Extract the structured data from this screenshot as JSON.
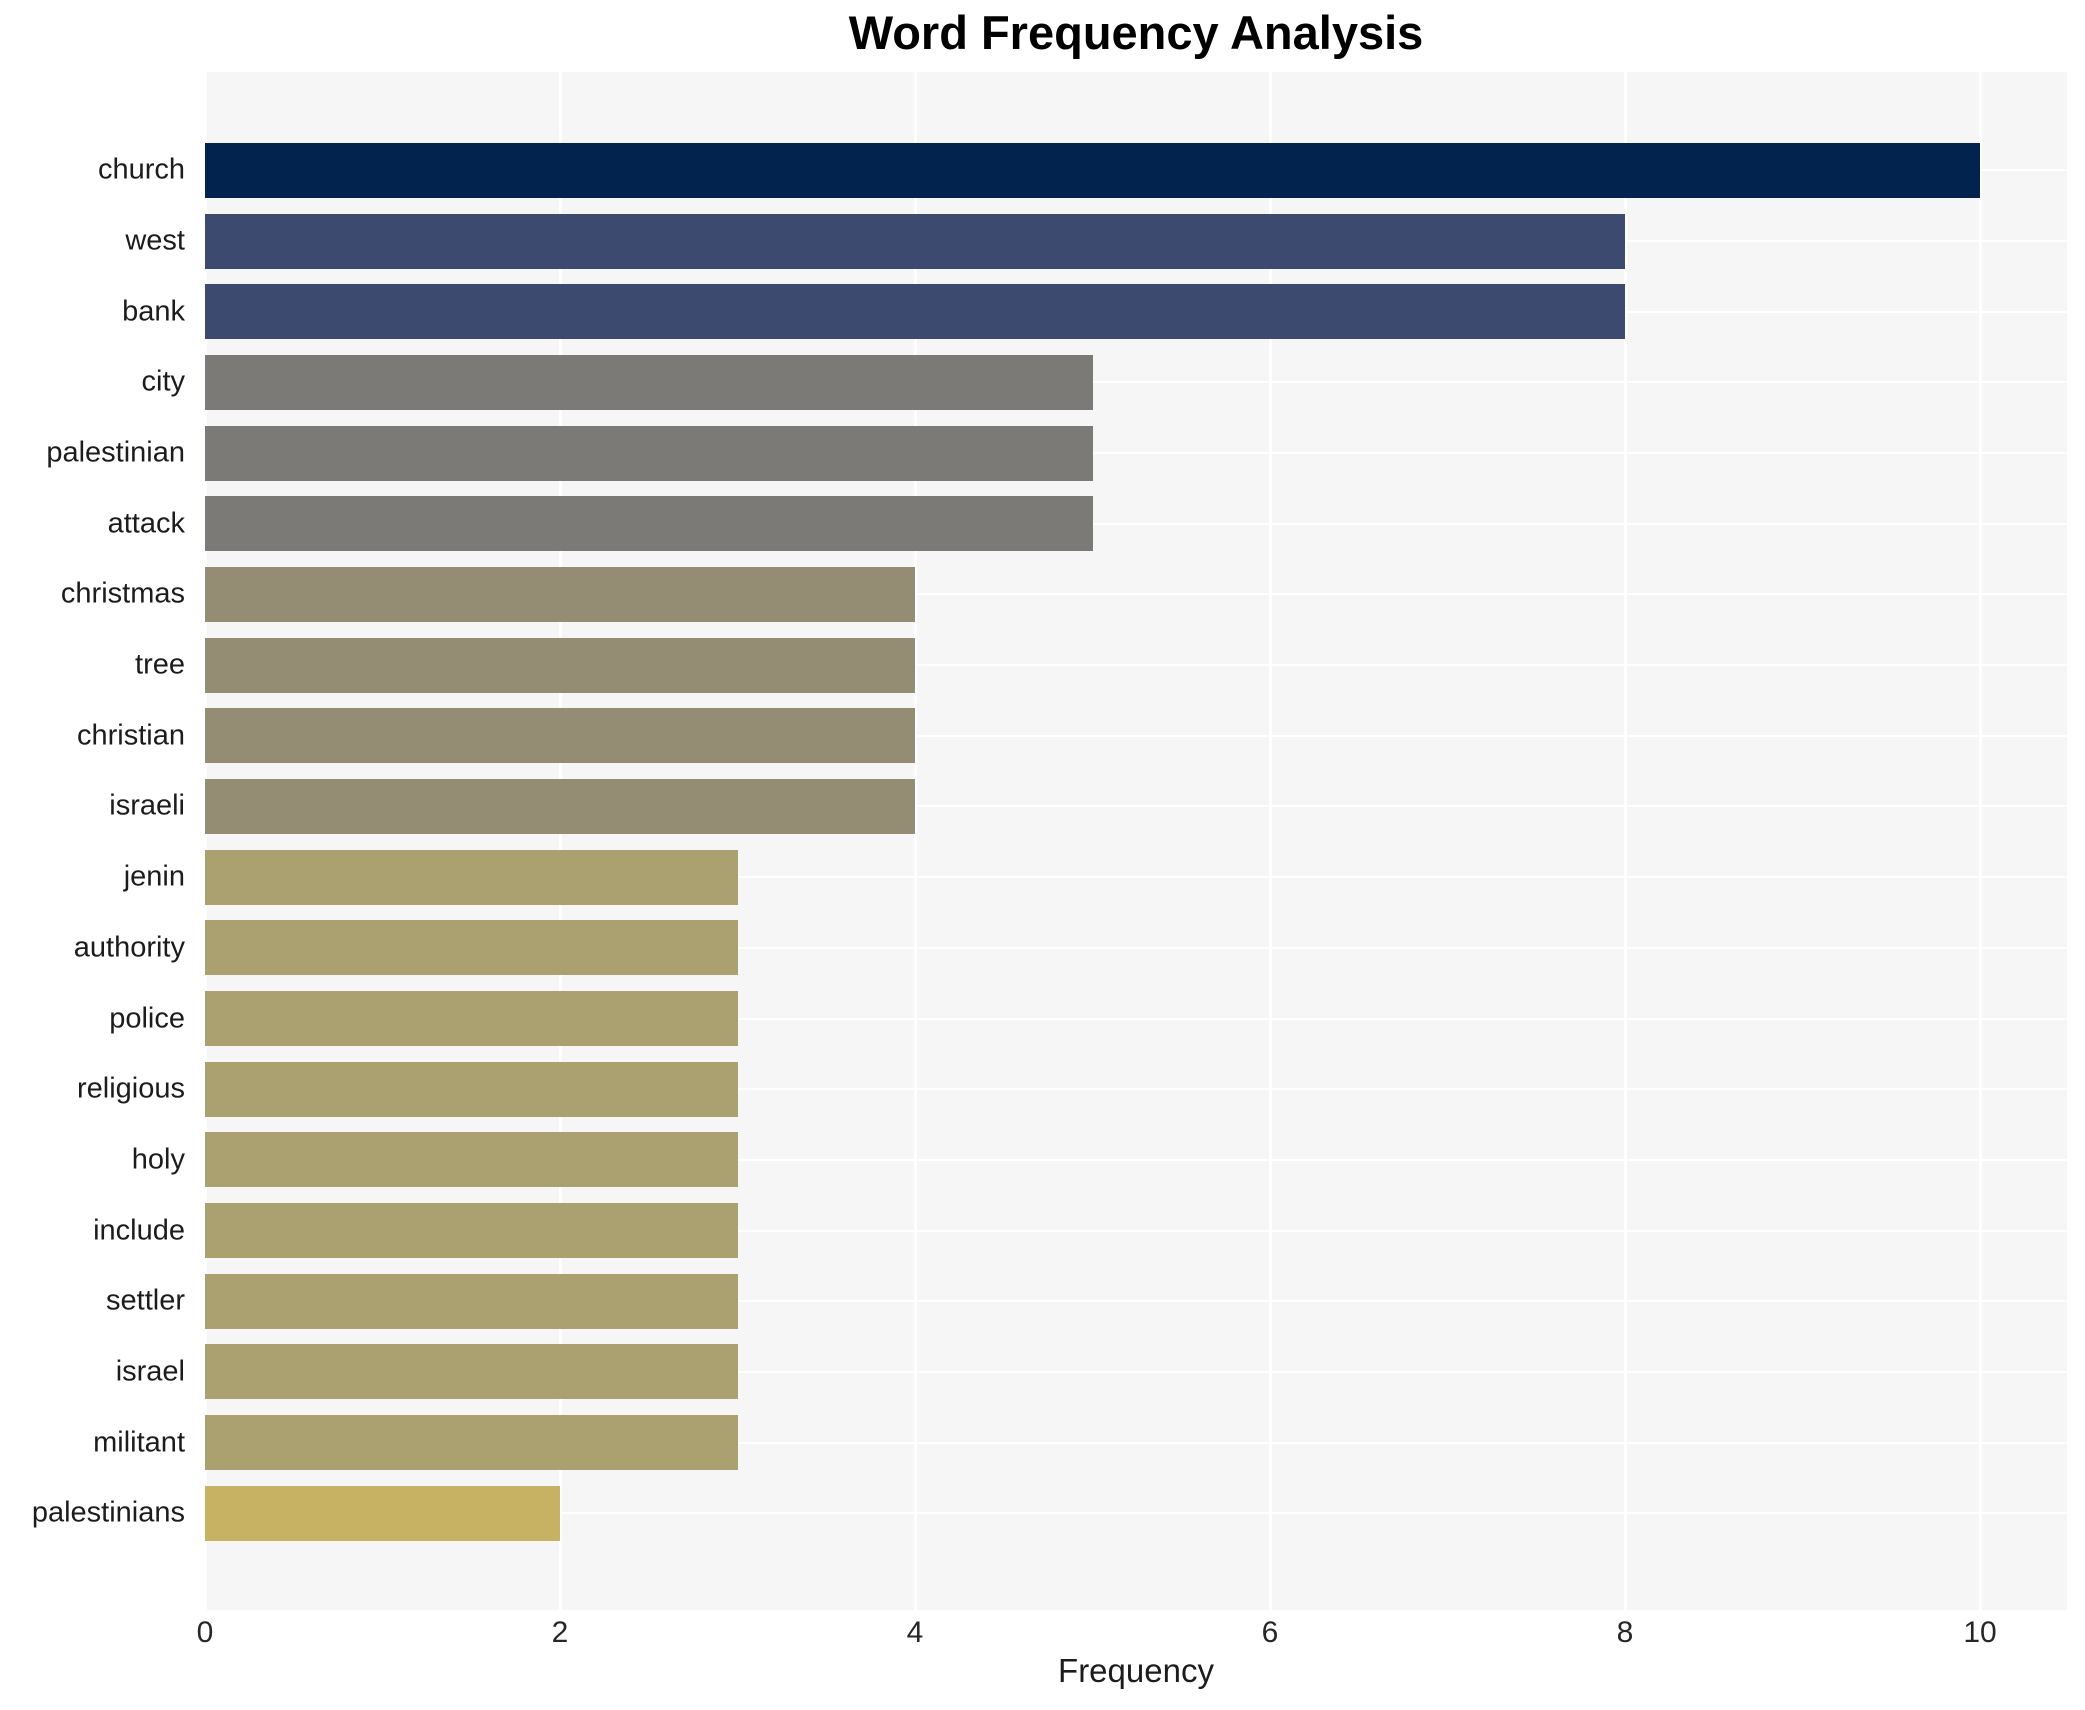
{
  "chart_data": {
    "type": "bar",
    "orientation": "horizontal",
    "title": "Word Frequency Analysis",
    "xlabel": "Frequency",
    "ylabel": "",
    "categories": [
      "church",
      "west",
      "bank",
      "city",
      "palestinian",
      "attack",
      "christmas",
      "tree",
      "christian",
      "israeli",
      "jenin",
      "authority",
      "police",
      "religious",
      "holy",
      "include",
      "settler",
      "israel",
      "militant",
      "palestinians"
    ],
    "values": [
      10,
      8,
      8,
      5,
      5,
      5,
      4,
      4,
      4,
      4,
      3,
      3,
      3,
      3,
      3,
      3,
      3,
      3,
      3,
      2
    ],
    "bar_colors": [
      "#02234e",
      "#3b4a6e",
      "#3b4a6e",
      "#7b7a76",
      "#7b7a76",
      "#7b7a76",
      "#948d73",
      "#948d73",
      "#948d73",
      "#948d73",
      "#aba06f",
      "#aba06f",
      "#aba06f",
      "#aba06f",
      "#aba06f",
      "#aba06f",
      "#aba06f",
      "#aba06f",
      "#aba06f",
      "#c6b262"
    ],
    "xticks": [
      0,
      2,
      4,
      6,
      8,
      10
    ],
    "xlim": [
      0,
      10.5
    ],
    "grid": true,
    "legend_position": "none",
    "plot_background": "#f6f6f7",
    "grid_color": "#ffffff",
    "title_color": "#000000",
    "tick_color": "#262626"
  }
}
